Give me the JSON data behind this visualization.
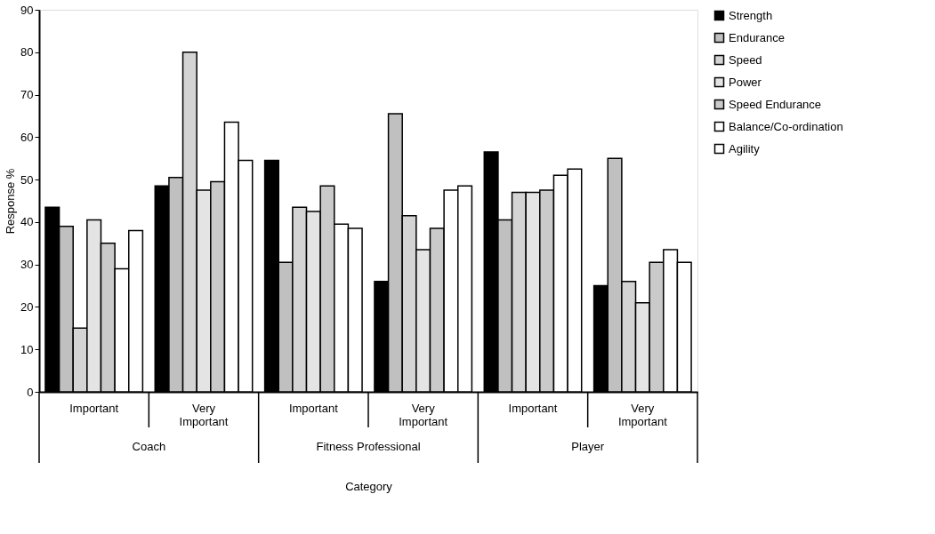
{
  "chart_data": {
    "type": "bar",
    "xlabel": "Category",
    "ylabel": "Response %",
    "categories": [
      "Important",
      "Very Important",
      "Important",
      "Very Important",
      "Important",
      "Very Important"
    ],
    "series": [
      {
        "name": "Strength",
        "color": "#000000",
        "values": [
          43.5,
          48.5,
          54.5,
          26,
          56.5,
          25
        ]
      },
      {
        "name": "Endurance",
        "color": "#c0c0c0",
        "values": [
          39,
          50.5,
          30.5,
          65.5,
          40.5,
          55
        ]
      },
      {
        "name": "Speed",
        "color": "#d4d4d4",
        "values": [
          15,
          80,
          43.5,
          41.5,
          47,
          26
        ]
      },
      {
        "name": "Power",
        "color": "#e4e4e4",
        "values": [
          40.5,
          47.5,
          42.5,
          33.5,
          47,
          21
        ]
      },
      {
        "name": "Speed Endurance",
        "color": "#cacaca",
        "values": [
          35,
          49.5,
          48.5,
          38.5,
          47.5,
          30.5
        ]
      },
      {
        "name": "Balance/Co-ordination",
        "color": "#ffffff",
        "values": [
          29,
          63.5,
          39.5,
          47.5,
          51,
          33.5
        ]
      },
      {
        "name": "Agility",
        "color": "#ffffff",
        "values": [
          38,
          54.5,
          38.5,
          48.5,
          52.5,
          30.5
        ]
      }
    ],
    "annotations": [
      "Coach",
      "Fitness Professional",
      "Player"
    ],
    "ylim": [
      0,
      90
    ],
    "yticks": [
      0,
      10,
      20,
      30,
      40,
      50,
      60,
      70,
      80,
      90
    ],
    "grid": false,
    "legend": "right"
  }
}
